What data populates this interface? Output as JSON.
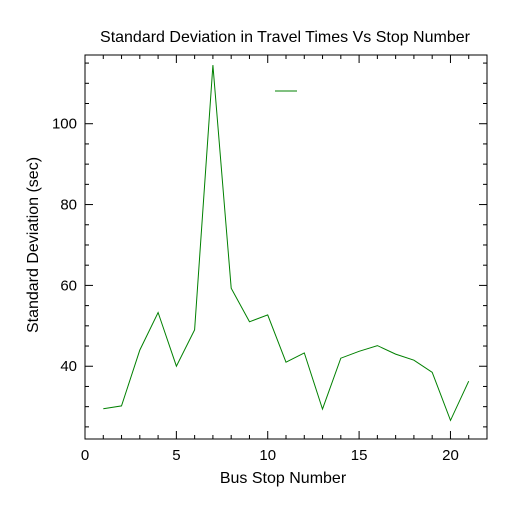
{
  "chart_data": {
    "type": "line",
    "title": "Standard Deviation in Travel Times Vs Stop Number",
    "xlabel": "Bus Stop Number",
    "ylabel": "Standard Deviation (sec)",
    "xlim": [
      0,
      22
    ],
    "ylim": [
      22,
      117
    ],
    "x_ticks": [
      0,
      5,
      10,
      15,
      20
    ],
    "y_ticks": [
      40,
      60,
      80,
      100
    ],
    "grid": false,
    "legend": {
      "position": "top-center",
      "entries": [
        {
          "label": "",
          "color": "#008000"
        }
      ]
    },
    "series": [
      {
        "color": "#008000",
        "x": [
          1,
          2,
          3,
          4,
          5,
          6,
          7,
          8,
          9,
          10,
          11,
          12,
          13,
          14,
          15,
          16,
          17,
          18,
          19,
          20,
          21
        ],
        "values": [
          29.5,
          30.2,
          44.0,
          53.3,
          40.0,
          49.0,
          114.5,
          59.3,
          51.0,
          52.7,
          41.0,
          43.3,
          29.4,
          42.0,
          43.7,
          45.1,
          43.0,
          41.5,
          38.5,
          26.6,
          36.3
        ]
      }
    ]
  }
}
